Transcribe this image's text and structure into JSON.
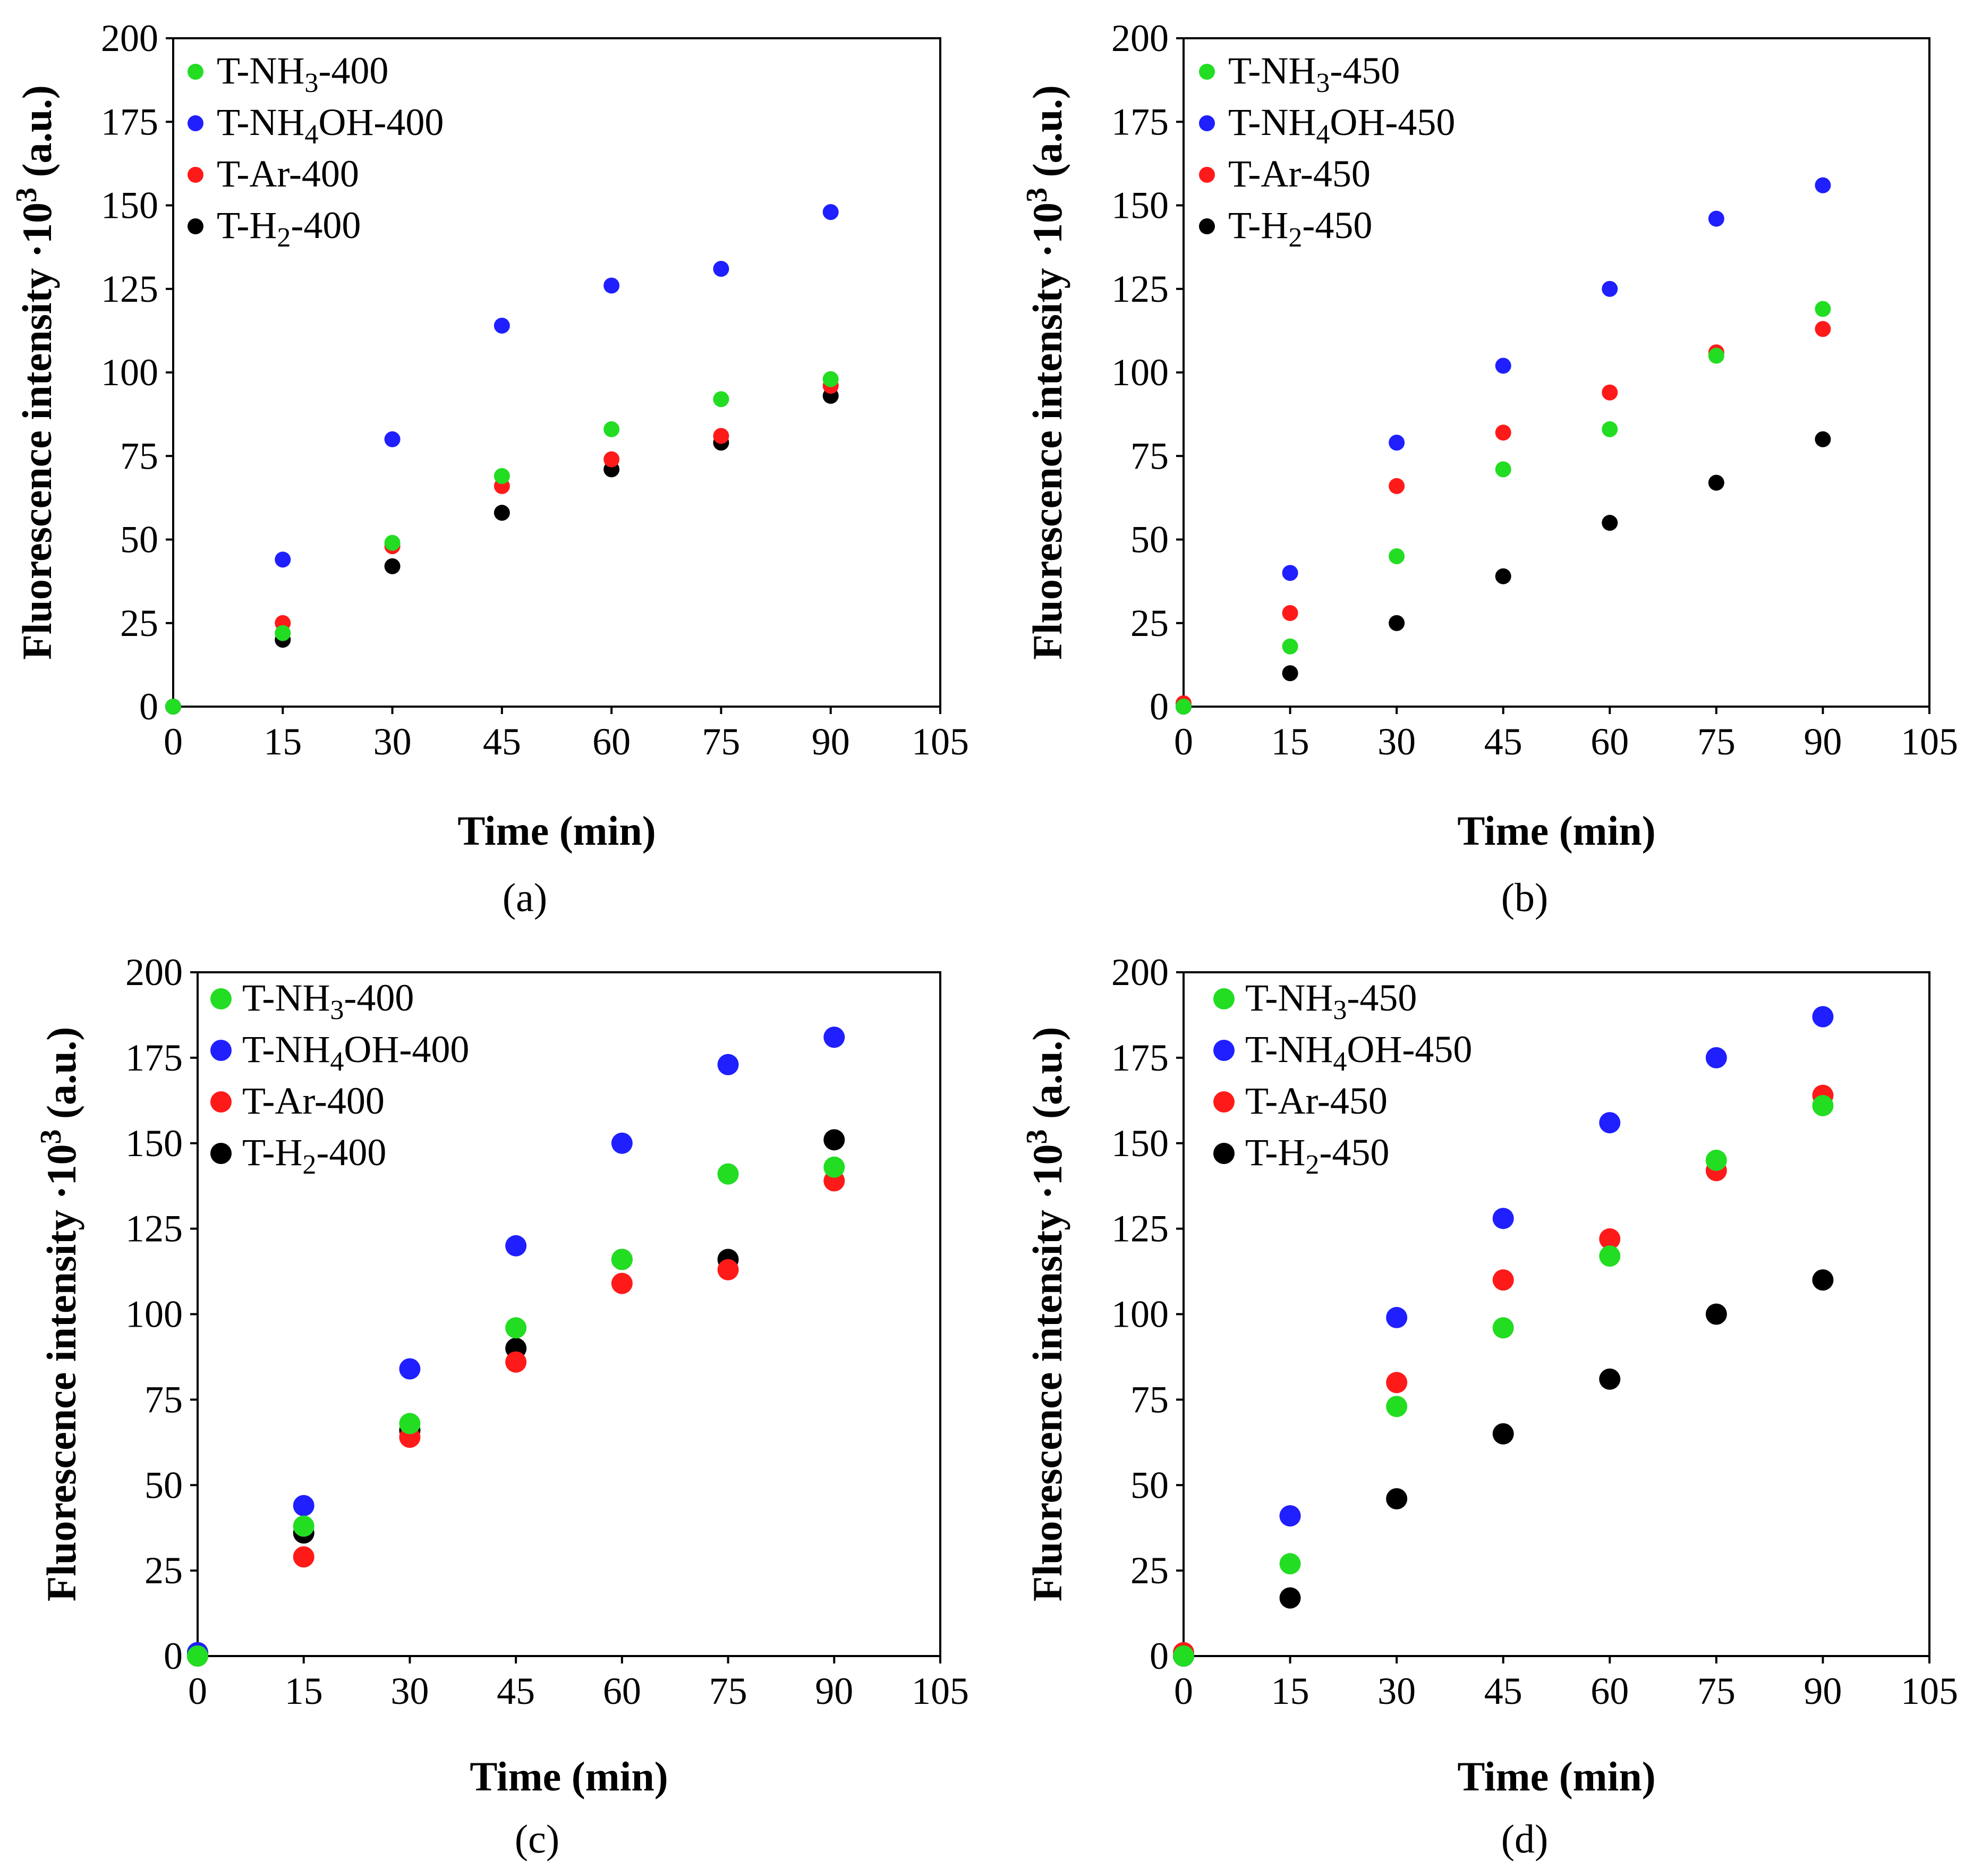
{
  "figure": {
    "colors": {
      "NH3": "#22dd22",
      "NH4OH": "#1f1fff",
      "Ar": "#ff1a1a",
      "H2": "#000000"
    }
  },
  "chart_data": [
    {
      "panel": "a",
      "panel_label": "(a)",
      "type": "scatter",
      "xlabel": "Time (min)",
      "ylabel": "Fluorescence intensity ·10³ (a.u.)",
      "xlim": [
        0,
        105
      ],
      "ylim": [
        0,
        200
      ],
      "xticks": [
        0,
        15,
        30,
        45,
        60,
        75,
        90,
        105
      ],
      "yticks": [
        0,
        25,
        50,
        75,
        100,
        125,
        150,
        175,
        200
      ],
      "grid": false,
      "legend_position": "top-left",
      "x": [
        0,
        15,
        30,
        45,
        60,
        75,
        90
      ],
      "series": [
        {
          "key": "NH3",
          "name": "T-NH₃-400",
          "values": [
            0,
            22,
            49,
            69,
            83,
            92,
            98
          ]
        },
        {
          "key": "NH4OH",
          "name": "T-NH₄OH-400",
          "values": [
            0,
            44,
            80,
            114,
            126,
            131,
            148
          ]
        },
        {
          "key": "Ar",
          "name": "T-Ar-400",
          "values": [
            0,
            25,
            48,
            66,
            74,
            81,
            96
          ]
        },
        {
          "key": "H2",
          "name": "T-H₂-400",
          "values": [
            0,
            20,
            42,
            58,
            71,
            79,
            93
          ]
        }
      ]
    },
    {
      "panel": "b",
      "panel_label": "(b)",
      "type": "scatter",
      "xlabel": "Time (min)",
      "ylabel": "Fluorescence intensity ·10³ (a.u.)",
      "xlim": [
        0,
        105
      ],
      "ylim": [
        0,
        200
      ],
      "xticks": [
        0,
        15,
        30,
        45,
        60,
        75,
        90,
        105
      ],
      "yticks": [
        0,
        25,
        50,
        75,
        100,
        125,
        150,
        175,
        200
      ],
      "grid": false,
      "legend_position": "top-left",
      "x": [
        0,
        15,
        30,
        45,
        60,
        75,
        90
      ],
      "series": [
        {
          "key": "NH3",
          "name": "T-NH₃-450",
          "values": [
            0,
            18,
            45,
            71,
            83,
            105,
            119
          ]
        },
        {
          "key": "NH4OH",
          "name": "T-NH₄OH-450",
          "values": [
            0,
            40,
            79,
            102,
            125,
            146,
            156
          ]
        },
        {
          "key": "Ar",
          "name": "T-Ar-450",
          "values": [
            1,
            28,
            66,
            82,
            94,
            106,
            113
          ]
        },
        {
          "key": "H2",
          "name": "T-H₂-450",
          "values": [
            0,
            10,
            25,
            39,
            55,
            67,
            80
          ]
        }
      ]
    },
    {
      "panel": "c",
      "panel_label": "(c)",
      "type": "scatter",
      "xlabel": "Time (min)",
      "ylabel": "Fluorescence intensity ·10³ (a.u.)",
      "xlim": [
        0,
        105
      ],
      "ylim": [
        0,
        200
      ],
      "xticks": [
        0,
        15,
        30,
        45,
        60,
        75,
        90,
        105
      ],
      "yticks": [
        0,
        25,
        50,
        75,
        100,
        125,
        150,
        175,
        200
      ],
      "grid": false,
      "legend_position": "top-left",
      "x": [
        0,
        15,
        30,
        45,
        60,
        75,
        90
      ],
      "series": [
        {
          "key": "NH3",
          "name": "T-NH₃-400",
          "values": [
            0,
            38,
            68,
            96,
            116,
            141,
            143
          ]
        },
        {
          "key": "NH4OH",
          "name": "T-NH₄OH-400",
          "values": [
            1,
            44,
            84,
            120,
            150,
            173,
            181
          ]
        },
        {
          "key": "Ar",
          "name": "T-Ar-400",
          "values": [
            0,
            29,
            64,
            86,
            109,
            113,
            139
          ]
        },
        {
          "key": "H2",
          "name": "T-H₂-400",
          "values": [
            1,
            36,
            66,
            90,
            116,
            116,
            151
          ]
        }
      ]
    },
    {
      "panel": "d",
      "panel_label": "(d)",
      "type": "scatter",
      "xlabel": "Time (min)",
      "ylabel": "Fluorescence intensity ·10³ (a.u.)",
      "xlim": [
        0,
        105
      ],
      "ylim": [
        0,
        200
      ],
      "xticks": [
        0,
        15,
        30,
        45,
        60,
        75,
        90,
        105
      ],
      "yticks": [
        0,
        25,
        50,
        75,
        100,
        125,
        150,
        175,
        200
      ],
      "grid": false,
      "legend_position": "top-left",
      "x": [
        0,
        15,
        30,
        45,
        60,
        75,
        90
      ],
      "series": [
        {
          "key": "NH3",
          "name": "T-NH₃-450",
          "values": [
            0,
            27,
            73,
            96,
            117,
            145,
            161
          ]
        },
        {
          "key": "NH4OH",
          "name": "T-NH₄OH-450",
          "values": [
            0,
            41,
            99,
            128,
            156,
            175,
            187
          ]
        },
        {
          "key": "Ar",
          "name": "T-Ar-450",
          "values": [
            1,
            41,
            80,
            110,
            122,
            142,
            164
          ]
        },
        {
          "key": "H2",
          "name": "T-H₂-450",
          "values": [
            0,
            17,
            46,
            65,
            81,
            100,
            110
          ]
        }
      ]
    }
  ]
}
